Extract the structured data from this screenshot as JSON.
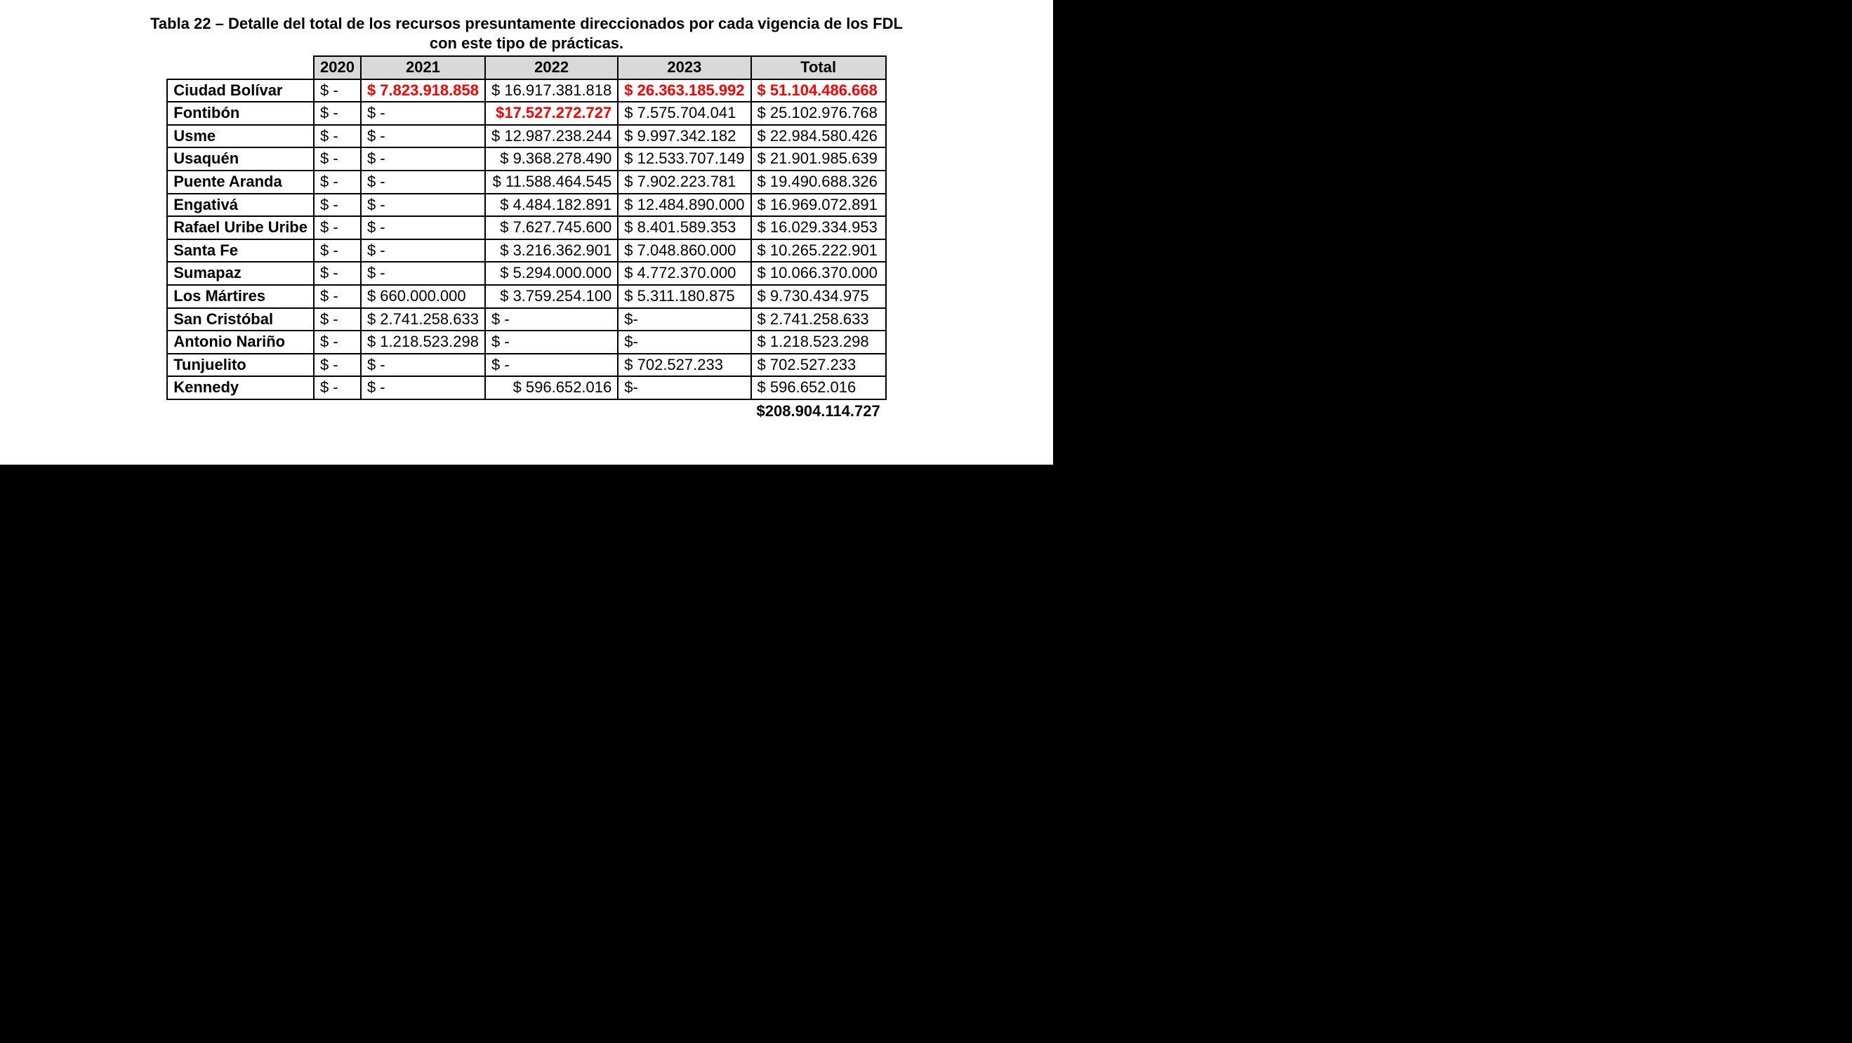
{
  "title": "Tabla 22 – Detalle del total de los recursos presuntamente direccionados por cada vigencia de los FDL con este tipo de prácticas.",
  "columns": [
    "2020",
    "2021",
    "2022",
    "2023",
    "Total"
  ],
  "col_align": [
    "left",
    "left",
    "right",
    "left",
    "left"
  ],
  "header_bg": "#d9d9d9",
  "border_color": "#000000",
  "red_color": "#ff0000",
  "rows": [
    {
      "label": "Ciudad Bolívar",
      "cells": [
        {
          "v": "$ -"
        },
        {
          "v": "$  7.823.918.858",
          "red": true
        },
        {
          "v": "$ 16.917.381.818"
        },
        {
          "v": "$  26.363.185.992",
          "red": true
        },
        {
          "v": "$ 51.104.486.668",
          "red": true
        }
      ]
    },
    {
      "label": "Fontibón",
      "cells": [
        {
          "v": "$ -"
        },
        {
          "v": "$ -"
        },
        {
          "v": "$17.527.272.727",
          "red": true
        },
        {
          "v": "$  7.575.704.041"
        },
        {
          "v": "$ 25.102.976.768"
        }
      ]
    },
    {
      "label": "Usme",
      "cells": [
        {
          "v": "$ -"
        },
        {
          "v": "$ -"
        },
        {
          "v": "$ 12.987.238.244"
        },
        {
          "v": "$  9.997.342.182"
        },
        {
          "v": "$ 22.984.580.426"
        }
      ]
    },
    {
      "label": "Usaquén",
      "cells": [
        {
          "v": "$ -"
        },
        {
          "v": "$ -"
        },
        {
          "v": "$ 9.368.278.490"
        },
        {
          "v": "$  12.533.707.149"
        },
        {
          "v": "$ 21.901.985.639"
        }
      ]
    },
    {
      "label": "Puente Aranda",
      "cells": [
        {
          "v": "$ -"
        },
        {
          "v": "$ -"
        },
        {
          "v": "$ 11.588.464.545"
        },
        {
          "v": "$  7.902.223.781"
        },
        {
          "v": "$ 19.490.688.326"
        }
      ]
    },
    {
      "label": "Engativá",
      "cells": [
        {
          "v": "$ -"
        },
        {
          "v": "$ -"
        },
        {
          "v": "$ 4.484.182.891"
        },
        {
          "v": "$  12.484.890.000"
        },
        {
          "v": "$ 16.969.072.891"
        }
      ]
    },
    {
      "label": "Rafael Uribe Uribe",
      "cells": [
        {
          "v": "$ -"
        },
        {
          "v": "$ -"
        },
        {
          "v": "$ 7.627.745.600"
        },
        {
          "v": "$  8.401.589.353"
        },
        {
          "v": "$ 16.029.334.953"
        }
      ]
    },
    {
      "label": "Santa Fe",
      "cells": [
        {
          "v": "$ -"
        },
        {
          "v": "$ -"
        },
        {
          "v": "$ 3.216.362.901"
        },
        {
          "v": "$  7.048.860.000"
        },
        {
          "v": "$ 10.265.222.901"
        }
      ]
    },
    {
      "label": "Sumapaz",
      "cells": [
        {
          "v": "$ -"
        },
        {
          "v": "$ -"
        },
        {
          "v": "$ 5.294.000.000"
        },
        {
          "v": "$  4.772.370.000"
        },
        {
          "v": "$ 10.066.370.000"
        }
      ]
    },
    {
      "label": "Los Mártires",
      "cells": [
        {
          "v": "$ -"
        },
        {
          "v": "$  660.000.000"
        },
        {
          "v": "$ 3.759.254.100"
        },
        {
          "v": "$  5.311.180.875"
        },
        {
          "v": "$ 9.730.434.975"
        }
      ]
    },
    {
      "label": "San Cristóbal",
      "cells": [
        {
          "v": "$ -"
        },
        {
          "v": "$  2.741.258.633"
        },
        {
          "v": "$ -",
          "align": "left"
        },
        {
          "v": "$-"
        },
        {
          "v": "$ 2.741.258.633"
        }
      ]
    },
    {
      "label": "Antonio Nariño",
      "cells": [
        {
          "v": "$ -"
        },
        {
          "v": "$  1.218.523.298"
        },
        {
          "v": "$ -",
          "align": "left"
        },
        {
          "v": "$-"
        },
        {
          "v": "$ 1.218.523.298"
        }
      ]
    },
    {
      "label": "Tunjuelito",
      "cells": [
        {
          "v": "$ -"
        },
        {
          "v": "$ -"
        },
        {
          "v": "$ -",
          "align": "left"
        },
        {
          "v": "$  702.527.233"
        },
        {
          "v": "$ 702.527.233"
        }
      ]
    },
    {
      "label": "Kennedy",
      "cells": [
        {
          "v": "$ -"
        },
        {
          "v": "$ -"
        },
        {
          "v": "$ 596.652.016"
        },
        {
          "v": "$-"
        },
        {
          "v": "$ 596.652.016"
        }
      ]
    }
  ],
  "grand_total": "$208.904.114.727"
}
